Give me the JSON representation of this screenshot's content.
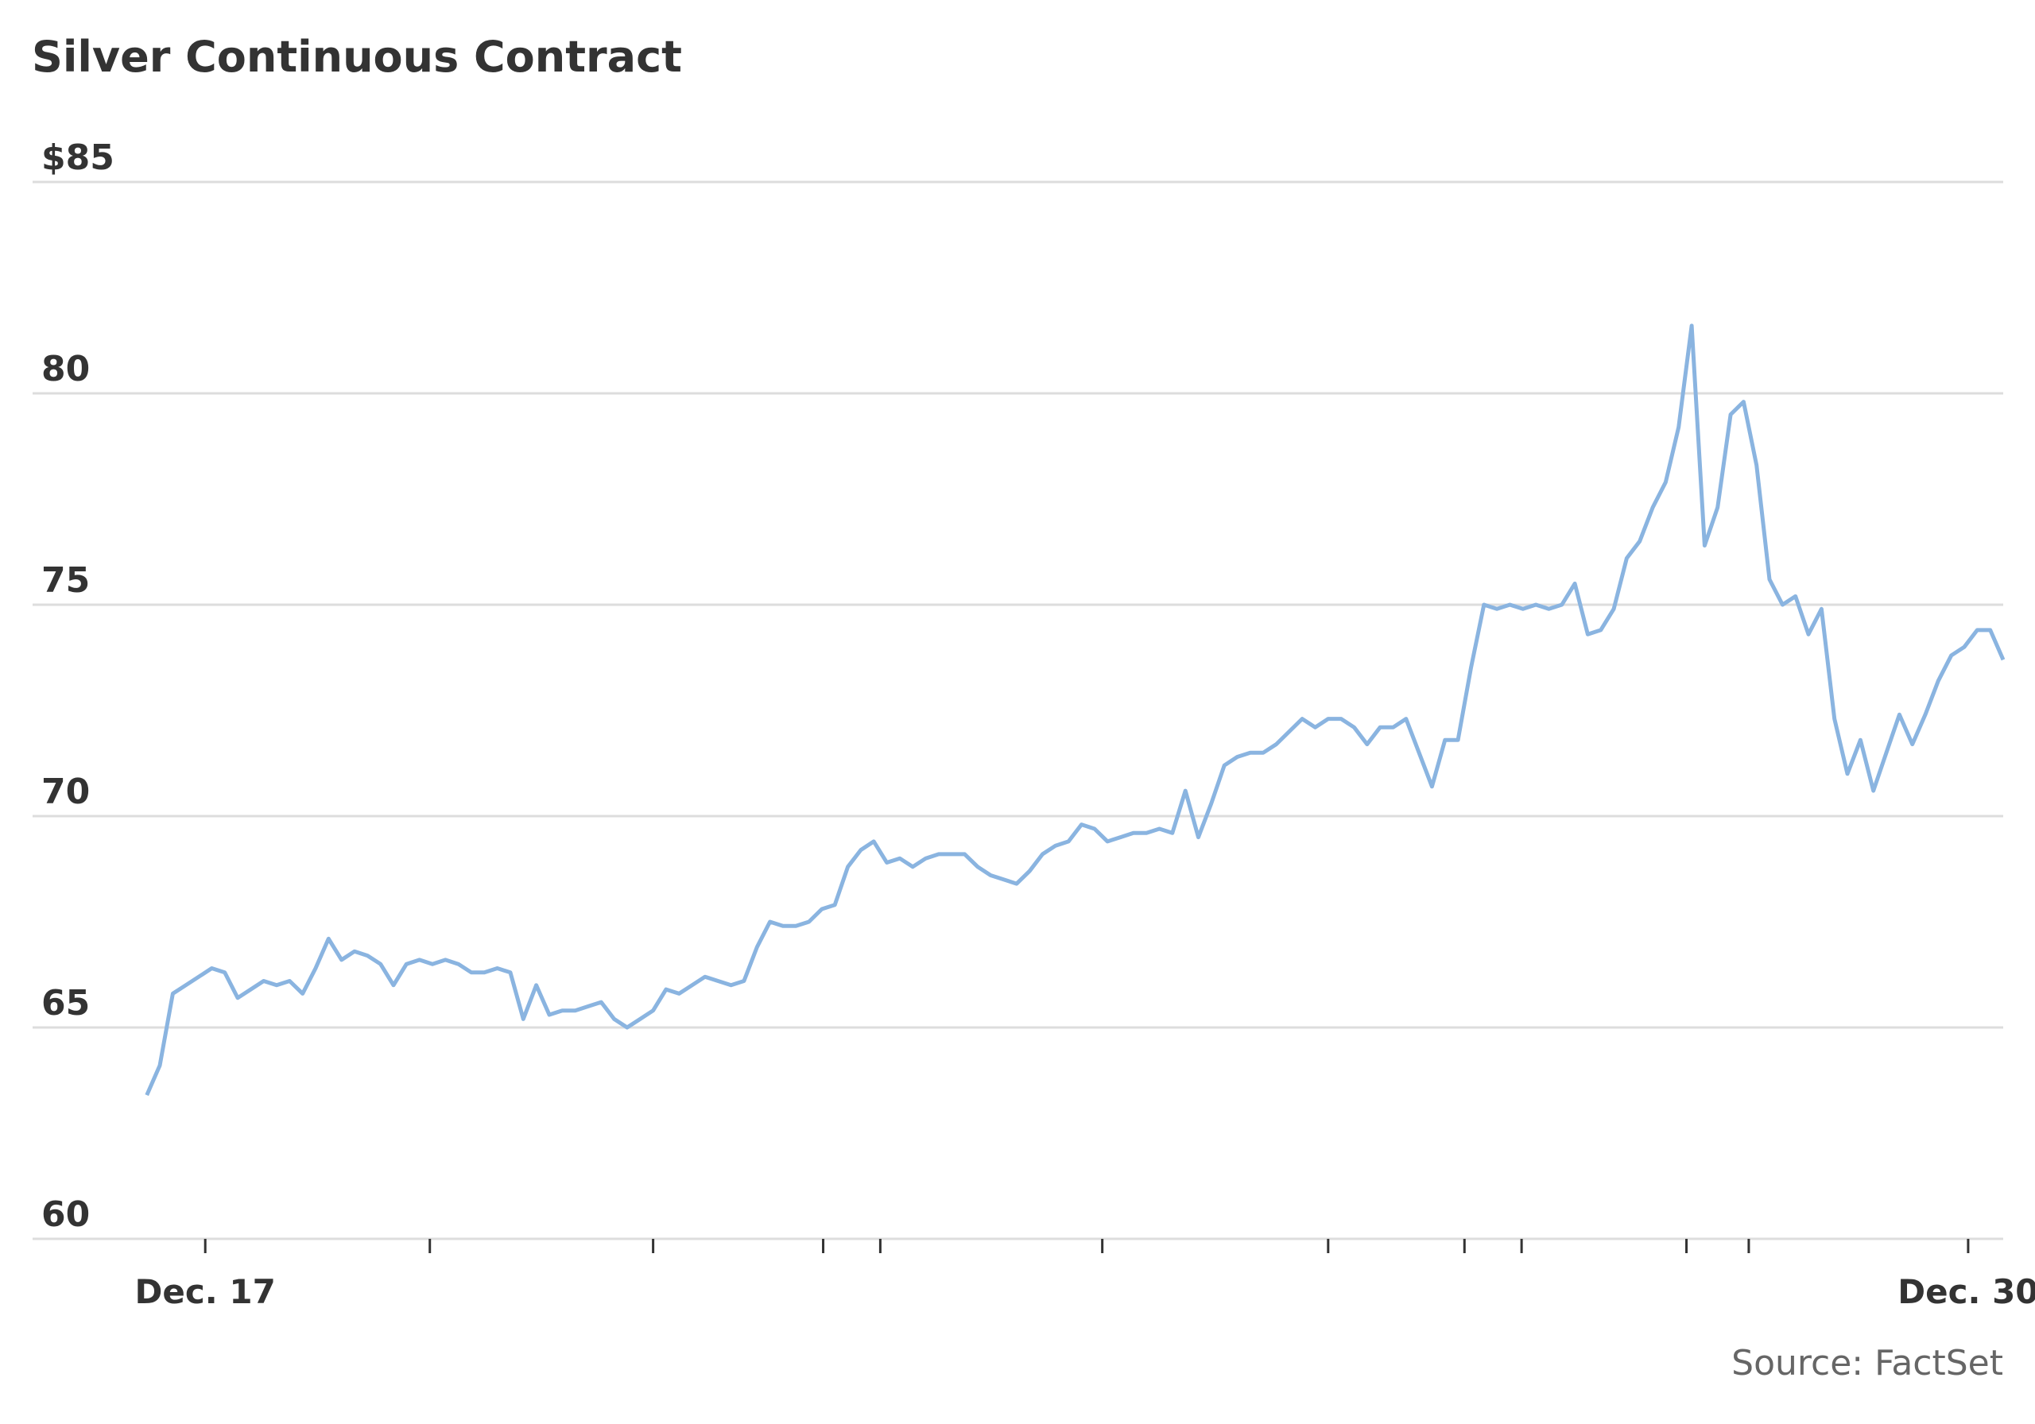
{
  "chart_data": {
    "type": "line",
    "title": "Silver Continuous Contract",
    "source": "Source: FactSet",
    "values": [
      63.4,
      64.1,
      65.8,
      66.0,
      66.2,
      66.4,
      66.3,
      65.7,
      65.9,
      66.1,
      66.0,
      66.1,
      65.8,
      66.4,
      67.1,
      66.6,
      66.8,
      66.7,
      66.5,
      66.0,
      66.5,
      66.6,
      66.5,
      66.6,
      66.5,
      66.3,
      66.3,
      66.4,
      66.3,
      65.2,
      66.0,
      65.3,
      65.4,
      65.4,
      65.5,
      65.6,
      65.2,
      65.0,
      65.2,
      65.4,
      65.9,
      65.8,
      66.0,
      66.2,
      66.1,
      66.0,
      66.1,
      66.9,
      67.5,
      67.4,
      67.4,
      67.5,
      67.8,
      67.9,
      68.8,
      69.2,
      69.4,
      68.9,
      69.0,
      68.8,
      69.0,
      69.1,
      69.1,
      69.1,
      68.8,
      68.6,
      68.5,
      68.4,
      68.7,
      69.1,
      69.3,
      69.4,
      69.8,
      69.7,
      69.4,
      69.5,
      69.6,
      69.6,
      69.7,
      69.6,
      70.6,
      69.5,
      70.3,
      71.2,
      71.4,
      71.5,
      71.5,
      71.7,
      72.0,
      72.3,
      72.1,
      72.3,
      72.3,
      72.1,
      71.7,
      72.1,
      72.1,
      72.3,
      71.5,
      70.7,
      71.8,
      71.8,
      73.5,
      75.0,
      74.9,
      75.0,
      74.9,
      75.0,
      74.9,
      75.0,
      75.5,
      74.3,
      74.4,
      74.9,
      76.1,
      76.5,
      77.3,
      77.9,
      79.2,
      81.6,
      76.4,
      77.3,
      79.5,
      79.8,
      78.3,
      75.6,
      75.0,
      75.2,
      74.3,
      74.9,
      72.3,
      71.0,
      71.8,
      70.6,
      71.5,
      72.4,
      71.7,
      72.4,
      73.2,
      73.8,
      74.0,
      74.4,
      74.4,
      73.7
    ],
    "color": "#8ab4e0",
    "xlim": [
      -8.8,
      143
    ],
    "xticks": [
      {
        "value": 4.5,
        "label": "Dec. 17"
      },
      {
        "value": 140.3,
        "label": "Dec. 30"
      }
    ],
    "xtick_marks": [
      21.8,
      39,
      52.1,
      56.5,
      73.6,
      91,
      101.5,
      105.9,
      118.6,
      123.4
    ],
    "ylim": [
      60,
      85
    ],
    "yticks": [
      60,
      65,
      70,
      75,
      80,
      {
        "value": 85,
        "label": "$85"
      }
    ],
    "grid": true
  }
}
